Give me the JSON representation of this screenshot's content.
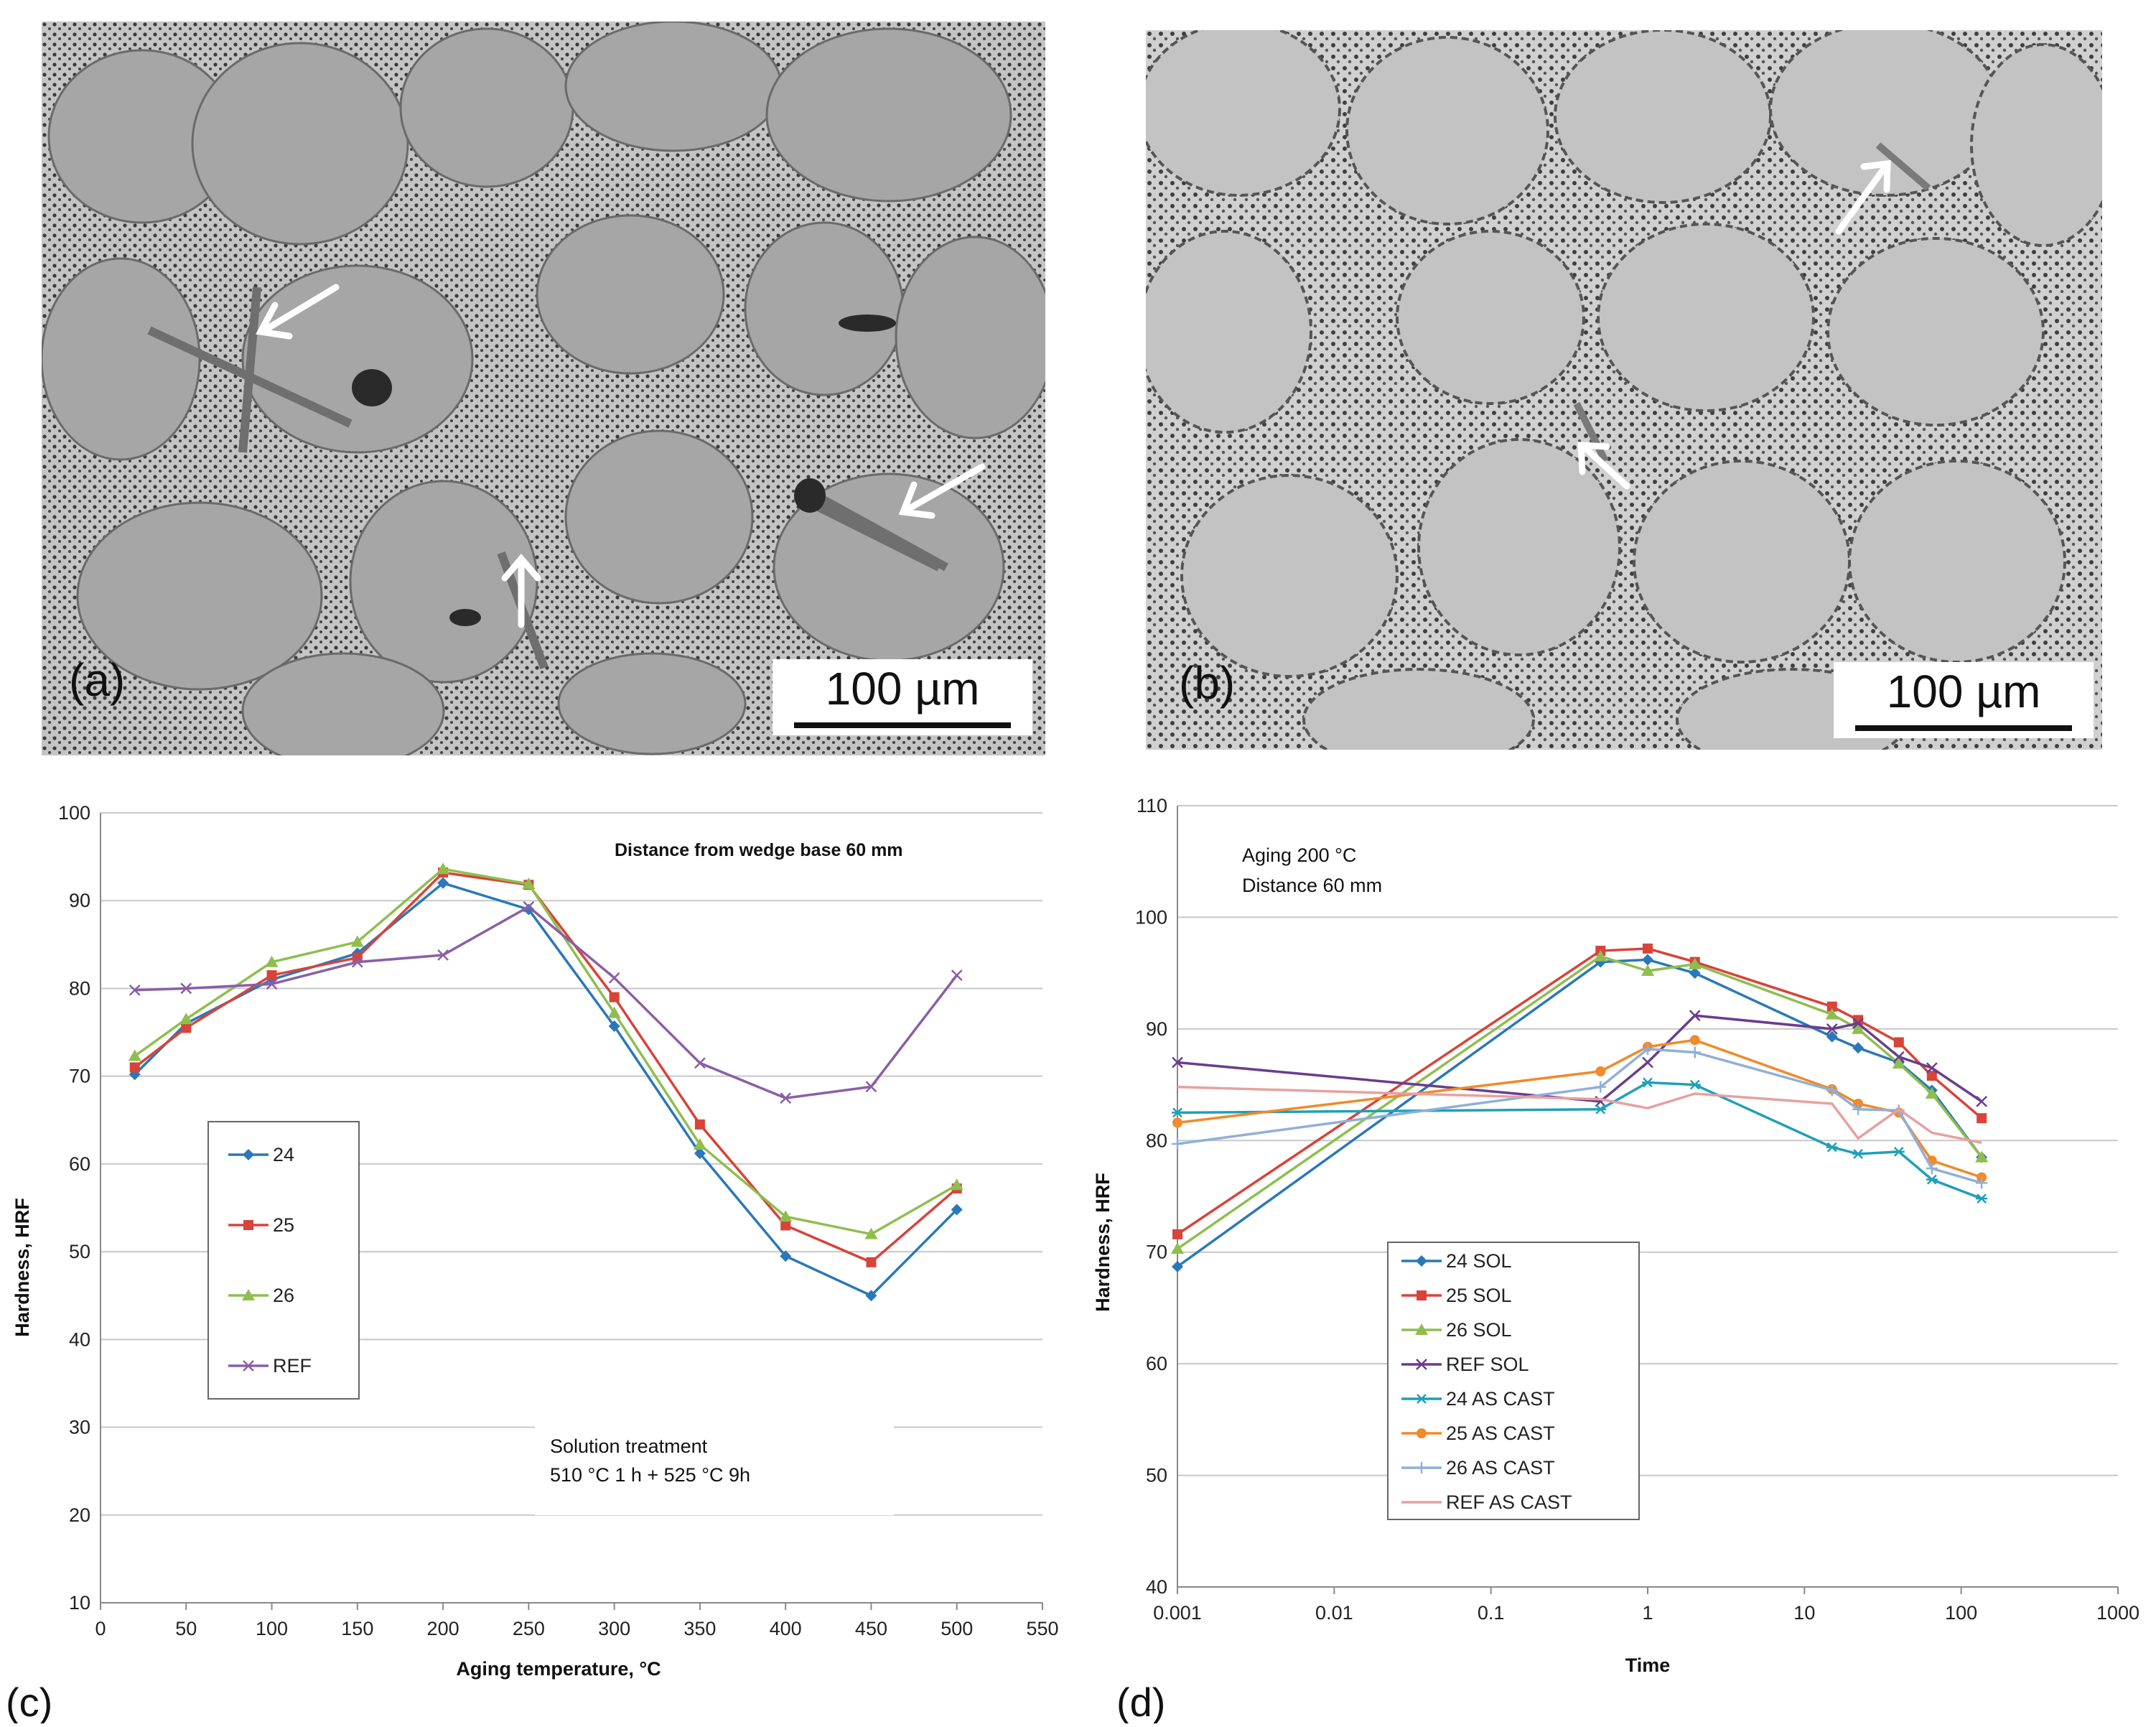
{
  "micrographs": [
    {
      "label": "(a)",
      "scale_text": "100 µm"
    },
    {
      "label": "(b)",
      "scale_text": "100 µm"
    }
  ],
  "chart_data": [
    {
      "panel": "(c)",
      "type": "line",
      "title": "",
      "annotations": [
        "Distance from wedge base  60 mm",
        "Solution treatment",
        "510 °C 1 h + 525 °C 9h"
      ],
      "xlabel": "Aging temperature, °C",
      "ylabel": "Hardness, HRF",
      "xlim": [
        0,
        550
      ],
      "ylim": [
        10,
        100
      ],
      "xticks": [
        0,
        50,
        100,
        150,
        200,
        250,
        300,
        350,
        400,
        450,
        500,
        550
      ],
      "yticks": [
        10,
        20,
        30,
        40,
        50,
        60,
        70,
        80,
        90,
        100
      ],
      "legend_position": "middle-left",
      "series": [
        {
          "name": "24",
          "color": "#2a78b8",
          "marker": "diamond",
          "x": [
            20,
            50,
            100,
            150,
            200,
            250,
            300,
            350,
            400,
            450,
            500
          ],
          "values": [
            70.2,
            76,
            81,
            84,
            92,
            89,
            75.7,
            61.2,
            49.5,
            45,
            54.8
          ]
        },
        {
          "name": "25",
          "color": "#d8433a",
          "marker": "square",
          "x": [
            20,
            50,
            100,
            150,
            200,
            250,
            300,
            350,
            400,
            450,
            500
          ],
          "values": [
            71,
            75.5,
            81.5,
            83.5,
            93.2,
            91.8,
            79,
            64.5,
            53,
            48.8,
            57.2
          ]
        },
        {
          "name": "26",
          "color": "#8fbe4e",
          "marker": "triangle",
          "x": [
            20,
            50,
            100,
            150,
            200,
            250,
            300,
            350,
            400,
            450,
            500
          ],
          "values": [
            72.3,
            76.5,
            83,
            85.3,
            93.6,
            91.9,
            77.2,
            62.2,
            54,
            52,
            57.6
          ]
        },
        {
          "name": "REF",
          "color": "#8a5fa6",
          "marker": "x",
          "x": [
            20,
            50,
            100,
            150,
            200,
            250,
            300,
            350,
            400,
            450,
            500
          ],
          "values": [
            79.8,
            80,
            80.5,
            83,
            83.8,
            89.3,
            81.2,
            71.5,
            67.5,
            68.8,
            81.5
          ]
        }
      ]
    },
    {
      "panel": "(d)",
      "type": "line",
      "title": "",
      "annotations": [
        "Aging 200 °C",
        "Distance  60 mm"
      ],
      "xlabel": "Time",
      "ylabel": "Hardness, HRF",
      "xscale": "log",
      "xlim": [
        0.001,
        1000
      ],
      "ylim": [
        40,
        110
      ],
      "xticks": [
        "0.001",
        "0.01",
        "0.1",
        "1",
        "10",
        "100",
        "1000"
      ],
      "yticks": [
        40,
        50,
        60,
        70,
        80,
        90,
        100,
        110
      ],
      "legend_position": "bottom-left",
      "series": [
        {
          "name": "24 SOL",
          "color": "#2a78b8",
          "marker": "diamond",
          "x": [
            0.001,
            0.5,
            1,
            2,
            15,
            22,
            40,
            65,
            135
          ],
          "values": [
            68.7,
            96,
            96.2,
            95,
            89.3,
            88.3,
            87,
            84.5,
            78.5
          ]
        },
        {
          "name": "25 SOL",
          "color": "#d8433a",
          "marker": "square",
          "x": [
            0.001,
            0.5,
            1,
            2,
            15,
            22,
            40,
            65,
            135
          ],
          "values": [
            71.6,
            97,
            97.2,
            96,
            92,
            90.8,
            88.8,
            85.8,
            82
          ]
        },
        {
          "name": "26 SOL",
          "color": "#8fbe4e",
          "marker": "triangle",
          "x": [
            0.001,
            0.5,
            1,
            2,
            15,
            22,
            40,
            65,
            135
          ],
          "values": [
            70.3,
            96.5,
            95.2,
            95.8,
            91.3,
            90,
            86.9,
            84.2,
            78.5
          ]
        },
        {
          "name": "REF SOL",
          "color": "#6a3d8c",
          "marker": "x",
          "x": [
            0.001,
            0.5,
            1,
            2,
            15,
            22,
            40,
            65,
            135
          ],
          "values": [
            87,
            83.5,
            87,
            91.2,
            90,
            90.5,
            87.5,
            86.5,
            83.5
          ]
        },
        {
          "name": "24 AS CAST",
          "color": "#1fa0b8",
          "marker": "star",
          "x": [
            0.001,
            0.5,
            1,
            2,
            15,
            22,
            40,
            65,
            135
          ],
          "values": [
            82.5,
            82.8,
            85.2,
            85,
            79.4,
            78.8,
            79,
            76.5,
            74.8
          ]
        },
        {
          "name": "25 AS CAST",
          "color": "#f08a2a",
          "marker": "circle",
          "x": [
            0.001,
            0.5,
            1,
            2,
            15,
            22,
            40,
            65,
            135
          ],
          "values": [
            81.6,
            86.2,
            88.4,
            89,
            84.6,
            83.3,
            82.5,
            78.2,
            76.7
          ]
        },
        {
          "name": "26 AS CAST",
          "color": "#8fb0d8",
          "marker": "plus",
          "x": [
            0.001,
            0.5,
            1,
            2,
            15,
            22,
            40,
            65,
            135
          ],
          "values": [
            79.7,
            84.8,
            88.2,
            87.9,
            84.5,
            82.8,
            82.7,
            77.5,
            76.2
          ]
        },
        {
          "name": "REF AS CAST",
          "color": "#e8a0a0",
          "marker": "none",
          "x": [
            0.001,
            0.5,
            1,
            2,
            15,
            22,
            40,
            65,
            135
          ],
          "values": [
            84.8,
            83.7,
            82.9,
            84.2,
            83.3,
            80.2,
            82.8,
            80.7,
            79.8
          ]
        }
      ]
    }
  ]
}
